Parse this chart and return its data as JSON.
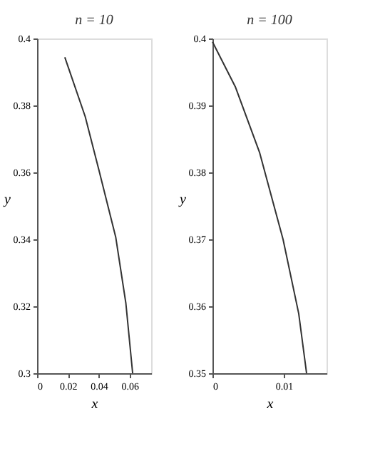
{
  "chart_data": [
    {
      "type": "line",
      "title": "n = 10",
      "xlabel": "x",
      "ylabel": "y",
      "xlim": [
        0,
        0.074
      ],
      "ylim": [
        0.3,
        0.4
      ],
      "xticks": [
        0,
        0.02,
        0.04,
        0.06
      ],
      "yticks": [
        0.3,
        0.32,
        0.34,
        0.36,
        0.38,
        0.4
      ],
      "grid": false,
      "series": [
        {
          "color": "#333333",
          "x": [
            0.018,
            0.0312,
            0.04,
            0.051,
            0.0576,
            0.062
          ],
          "values": [
            0.3944,
            0.3767,
            0.3609,
            0.3407,
            0.3209,
            0.3
          ]
        }
      ]
    },
    {
      "type": "line",
      "title": "n = 100",
      "xlabel": "x",
      "ylabel": "y",
      "xlim": [
        0,
        0.016
      ],
      "ylim": [
        0.35,
        0.4
      ],
      "xticks": [
        0,
        0.01
      ],
      "yticks": [
        0.35,
        0.36,
        0.37,
        0.38,
        0.39,
        0.4
      ],
      "grid": false,
      "series": [
        {
          "color": "#333333",
          "x": [
            0,
            0.0032,
            0.0066,
            0.0099,
            0.0121,
            0.0132
          ],
          "values": [
            0.3995,
            0.3928,
            0.383,
            0.37,
            0.3589,
            0.35
          ]
        }
      ]
    }
  ]
}
